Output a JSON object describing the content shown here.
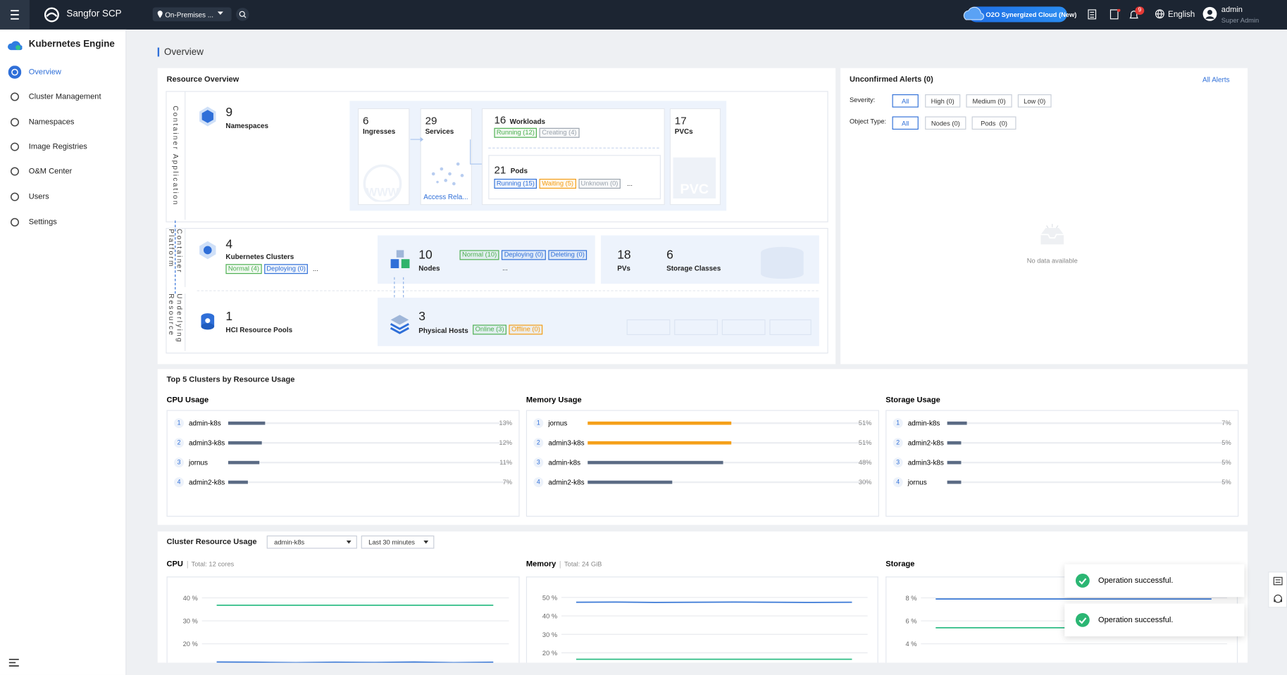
{
  "header": {
    "product": "Sangfor SCP",
    "location": "On-Premises ...",
    "cloud_badge": "O2O Synergized Cloud (New)",
    "notification_count": 9,
    "language": "English",
    "user": "admin",
    "role": "Super Admin"
  },
  "sidebar": {
    "title": "Kubernetes Engine",
    "items": [
      "Overview",
      "Cluster Management",
      "Namespaces",
      "Image Registries",
      "O&M Center",
      "Users",
      "Settings"
    ]
  },
  "page_title": "Overview",
  "resource_overview": {
    "title": "Resource Overview",
    "layers": [
      "Container Application",
      "Container Platform",
      "Underlying Resource"
    ],
    "namespaces": {
      "count": 9,
      "label": "Namespaces"
    },
    "ingresses": {
      "count": 6,
      "label": "Ingresses"
    },
    "services": {
      "count": 29,
      "label": "Services",
      "link": "Access Rela..."
    },
    "workloads": {
      "count": 16,
      "label": "Workloads",
      "statuses": [
        {
          "text": "Running (12)",
          "color": "#4caf50"
        },
        {
          "text": "Creating (4)",
          "color": "#9aa3ad"
        }
      ]
    },
    "pods": {
      "count": 21,
      "label": "Pods",
      "statuses": [
        {
          "text": "Running (15)",
          "color": "#2f6fd8"
        },
        {
          "text": "Waiting (5)",
          "color": "#f39c12"
        },
        {
          "text": "Unknown (0)",
          "color": "#9aa3ad"
        }
      ],
      "more": "..."
    },
    "pvcs": {
      "count": 17,
      "label": "PVCs"
    },
    "clusters": {
      "count": 4,
      "label": "Kubernetes Clusters",
      "statuses": [
        {
          "text": "Normal (4)",
          "color": "#4caf50"
        },
        {
          "text": "Deploying (0)",
          "color": "#2f6fd8"
        }
      ],
      "more": "..."
    },
    "nodes": {
      "count": 10,
      "label": "Nodes",
      "statuses": [
        {
          "text": "Normal (10)",
          "color": "#4caf50"
        },
        {
          "text": "Deploying (0)",
          "color": "#2f6fd8"
        },
        {
          "text": "Deleting (0)",
          "color": "#2f6fd8"
        }
      ],
      "more": "..."
    },
    "pvs": {
      "count": 18,
      "label": "PVs"
    },
    "storage_classes": {
      "count": 6,
      "label": "Storage Classes"
    },
    "hci_pools": {
      "count": 1,
      "label": "HCI Resource Pools"
    },
    "physical_hosts": {
      "count": 3,
      "label": "Physical Hosts",
      "statuses": [
        {
          "text": "Online (3)",
          "color": "#4caf50"
        },
        {
          "text": "Offline (0)",
          "color": "#f39c12"
        }
      ]
    }
  },
  "alerts": {
    "title": "Unconfirmed Alerts (0)",
    "link": "All Alerts",
    "severity_label": "Severity:",
    "severity": [
      "All",
      "High (0)",
      "Medium (0)",
      "Low (0)"
    ],
    "type_label": "Object Type:",
    "types": [
      "All",
      "Nodes (0)",
      "Pods  (0)"
    ],
    "empty": "No data available"
  },
  "top5": {
    "title": "Top 5 Clusters by Resource Usage",
    "groups": [
      {
        "title": "CPU Usage",
        "rows": [
          {
            "rank": 1,
            "name": "admin-k8s",
            "value": 13,
            "label": "13%",
            "color": "#5b6b84"
          },
          {
            "rank": 2,
            "name": "admin3-k8s",
            "value": 12,
            "label": "12%",
            "color": "#5b6b84"
          },
          {
            "rank": 3,
            "name": "jornus",
            "value": 11,
            "label": "11%",
            "color": "#5b6b84"
          },
          {
            "rank": 4,
            "name": "admin2-k8s",
            "value": 7,
            "label": "7%",
            "color": "#5b6b84"
          }
        ]
      },
      {
        "title": "Memory Usage",
        "rows": [
          {
            "rank": 1,
            "name": "jornus",
            "value": 51,
            "label": "51%",
            "color": "#f5a01a"
          },
          {
            "rank": 2,
            "name": "admin3-k8s",
            "value": 51,
            "label": "51%",
            "color": "#f5a01a"
          },
          {
            "rank": 3,
            "name": "admin-k8s",
            "value": 48,
            "label": "48%",
            "color": "#5b6b84"
          },
          {
            "rank": 4,
            "name": "admin2-k8s",
            "value": 30,
            "label": "30%",
            "color": "#5b6b84"
          }
        ]
      },
      {
        "title": "Storage Usage",
        "rows": [
          {
            "rank": 1,
            "name": "admin-k8s",
            "value": 7,
            "label": "7%",
            "color": "#5b6b84"
          },
          {
            "rank": 2,
            "name": "admin2-k8s",
            "value": 5,
            "label": "5%",
            "color": "#5b6b84"
          },
          {
            "rank": 3,
            "name": "admin3-k8s",
            "value": 5,
            "label": "5%",
            "color": "#5b6b84"
          },
          {
            "rank": 4,
            "name": "jornus",
            "value": 5,
            "label": "5%",
            "color": "#5b6b84"
          }
        ]
      }
    ]
  },
  "cluster_usage": {
    "title": "Cluster Resource Usage",
    "cluster": "admin-k8s",
    "range": "Last 30 minutes",
    "charts": [
      {
        "type": "line",
        "title": "CPU",
        "total": "Total: 12 cores",
        "ylim": [
          0,
          45
        ],
        "yticks": [
          {
            "value": 20,
            "label": "20 %"
          },
          {
            "value": 30,
            "label": "30 %"
          },
          {
            "value": 40,
            "label": "40 %"
          }
        ],
        "series": [
          {
            "color": "#2ebd85",
            "values": [
              36.8,
              36.8,
              36.8,
              36.8,
              36.8,
              36.8,
              36.8,
              36.8
            ]
          },
          {
            "color": "#3a78d6",
            "values": [
              12.1,
              12,
              11.8,
              12,
              11.9,
              12.1,
              11.8,
              12
            ]
          }
        ]
      },
      {
        "type": "line",
        "title": "Memory",
        "total": "Total: 24 GiB",
        "ylim": [
          0,
          56
        ],
        "yticks": [
          {
            "value": 20,
            "label": "20 %"
          },
          {
            "value": 30,
            "label": "30 %"
          },
          {
            "value": 40,
            "label": "40 %"
          },
          {
            "value": 50,
            "label": "50 %"
          }
        ],
        "series": [
          {
            "color": "#3a78d6",
            "values": [
              47.4,
              47.5,
              47.3,
              47.4,
              47.5,
              47.4,
              47.3,
              47.4
            ]
          },
          {
            "color": "#2ebd85",
            "values": [
              16.5,
              16.5,
              16.5,
              16.5,
              16.5,
              16.5,
              16.5,
              16.5
            ]
          }
        ]
      },
      {
        "type": "line",
        "title": "Storage",
        "ylim": [
          0,
          9
        ],
        "yticks": [
          {
            "value": 4,
            "label": "4 %"
          },
          {
            "value": 6,
            "label": "6 %"
          },
          {
            "value": 8,
            "label": "8 %"
          }
        ],
        "series": [
          {
            "color": "#3a78d6",
            "values": [
              7.9,
              7.9,
              7.9,
              7.9,
              7.9,
              7.9,
              7.9,
              7.9
            ]
          },
          {
            "color": "#2ebd85",
            "values": [
              5.4,
              5.4,
              5.4,
              5.4,
              5.4,
              5.4,
              5.4,
              5.4
            ]
          }
        ]
      }
    ]
  },
  "toasts": [
    "Operation successful.",
    "Operation successful."
  ]
}
